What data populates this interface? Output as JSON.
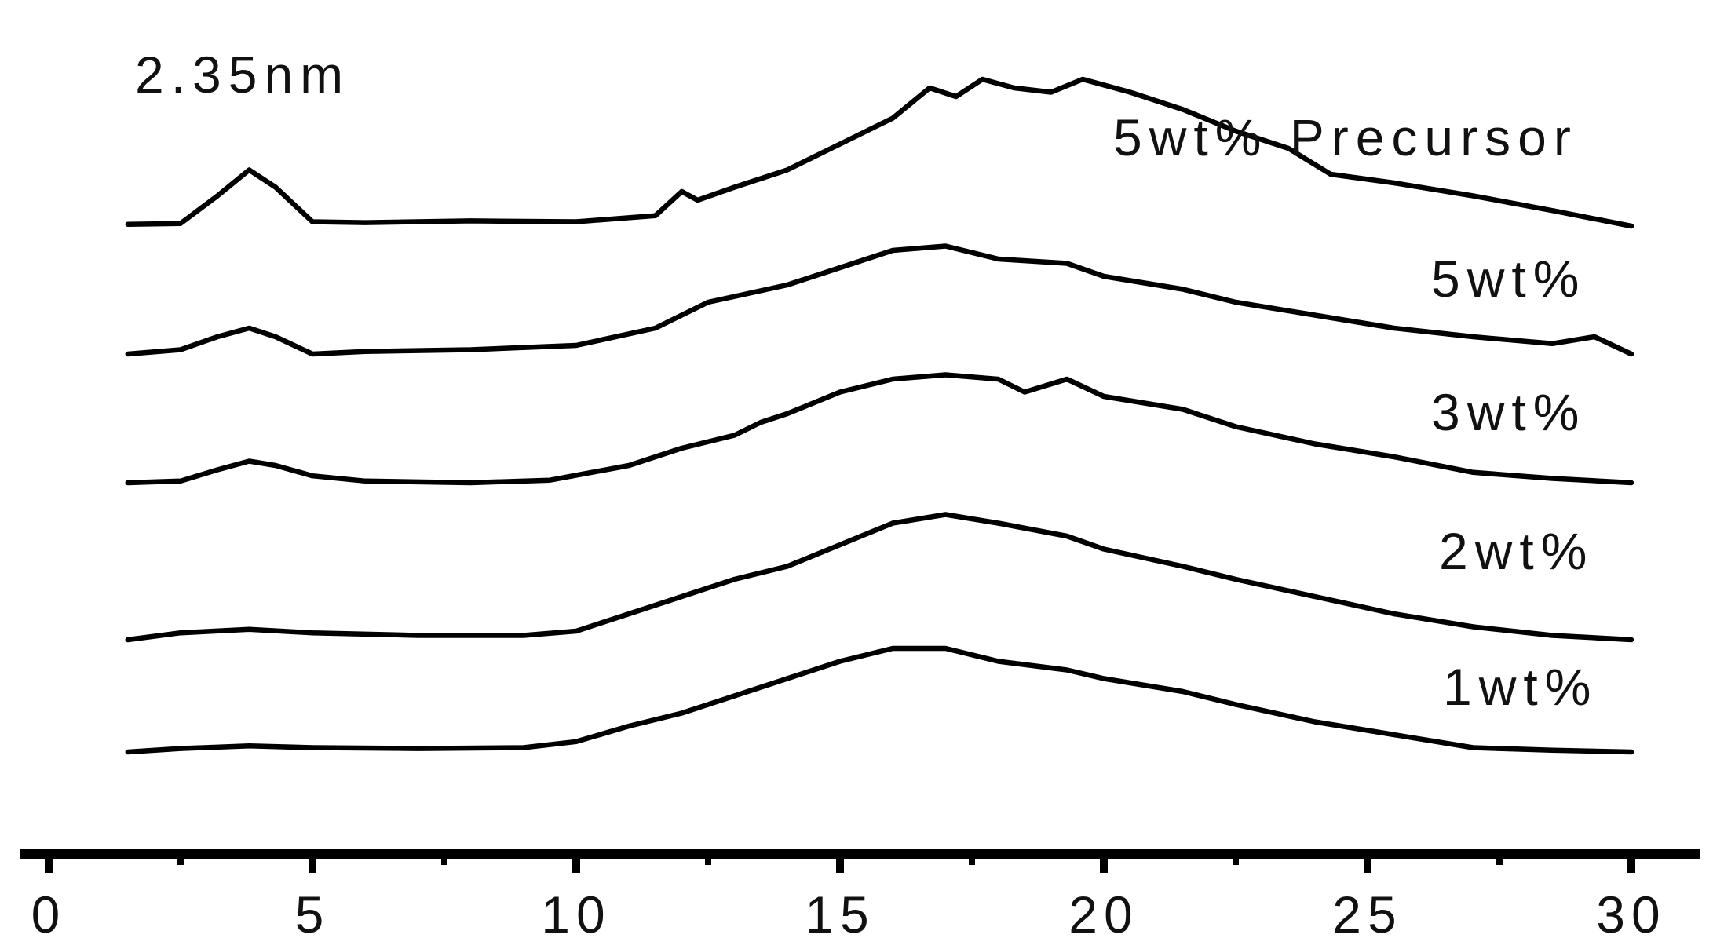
{
  "chart_data": {
    "type": "line",
    "title": "",
    "xlabel": "",
    "ylabel": "",
    "xlim": [
      -1,
      31.5
    ],
    "x_ticks": [
      0,
      5,
      10,
      15,
      20,
      25,
      30
    ],
    "x_minor_ticks": [
      2.5,
      7.5,
      12.5,
      17.5,
      22.5,
      27.5
    ],
    "grid": false,
    "legend": "none",
    "peak_annotation": {
      "text": "2.35nm",
      "x": 3.7,
      "series": "5wt% Precursor"
    },
    "series": [
      {
        "name": "5wt% Precursor",
        "label": "5wt% Precursor",
        "points": [
          [
            1.5,
            0.02
          ],
          [
            2.5,
            0.03
          ],
          [
            3.2,
            0.35
          ],
          [
            3.8,
            0.65
          ],
          [
            4.3,
            0.45
          ],
          [
            5.0,
            0.05
          ],
          [
            6,
            0.04
          ],
          [
            8,
            0.06
          ],
          [
            10,
            0.05
          ],
          [
            11.5,
            0.12
          ],
          [
            12,
            0.4
          ],
          [
            12.3,
            0.3
          ],
          [
            13,
            0.45
          ],
          [
            14,
            0.65
          ],
          [
            15,
            0.95
          ],
          [
            16,
            1.25
          ],
          [
            16.7,
            1.6
          ],
          [
            17.2,
            1.5
          ],
          [
            17.7,
            1.7
          ],
          [
            18.3,
            1.6
          ],
          [
            19,
            1.55
          ],
          [
            19.6,
            1.7
          ],
          [
            20.5,
            1.55
          ],
          [
            21.5,
            1.35
          ],
          [
            22.5,
            1.1
          ],
          [
            23.5,
            0.9
          ],
          [
            24.3,
            0.6
          ],
          [
            25.5,
            0.5
          ],
          [
            27,
            0.35
          ],
          [
            28.5,
            0.18
          ],
          [
            30,
            0.0
          ]
        ]
      },
      {
        "name": "5wt%",
        "label": "5wt%",
        "points": [
          [
            1.5,
            0.0
          ],
          [
            2.5,
            0.05
          ],
          [
            3.2,
            0.2
          ],
          [
            3.8,
            0.3
          ],
          [
            4.3,
            0.2
          ],
          [
            5,
            0.0
          ],
          [
            6,
            0.03
          ],
          [
            8,
            0.05
          ],
          [
            10,
            0.1
          ],
          [
            11.5,
            0.3
          ],
          [
            12.5,
            0.6
          ],
          [
            14,
            0.8
          ],
          [
            15,
            1.0
          ],
          [
            16,
            1.2
          ],
          [
            17,
            1.25
          ],
          [
            18,
            1.1
          ],
          [
            19.3,
            1.05
          ],
          [
            20,
            0.9
          ],
          [
            21.5,
            0.75
          ],
          [
            22.5,
            0.6
          ],
          [
            24,
            0.45
          ],
          [
            25.5,
            0.3
          ],
          [
            27,
            0.2
          ],
          [
            28.5,
            0.12
          ],
          [
            29.3,
            0.2
          ],
          [
            30,
            0.0
          ]
        ]
      },
      {
        "name": "3wt%",
        "label": "3wt%",
        "points": [
          [
            1.5,
            0.0
          ],
          [
            2.5,
            0.02
          ],
          [
            3.2,
            0.15
          ],
          [
            3.8,
            0.25
          ],
          [
            4.3,
            0.2
          ],
          [
            5,
            0.08
          ],
          [
            6,
            0.02
          ],
          [
            8,
            0.0
          ],
          [
            9.5,
            0.03
          ],
          [
            11,
            0.2
          ],
          [
            12,
            0.4
          ],
          [
            13,
            0.55
          ],
          [
            13.5,
            0.7
          ],
          [
            14,
            0.8
          ],
          [
            15,
            1.05
          ],
          [
            16,
            1.2
          ],
          [
            17,
            1.25
          ],
          [
            18,
            1.2
          ],
          [
            18.5,
            1.05
          ],
          [
            19.3,
            1.2
          ],
          [
            20,
            1.0
          ],
          [
            21.5,
            0.85
          ],
          [
            22.5,
            0.65
          ],
          [
            24,
            0.45
          ],
          [
            25.5,
            0.3
          ],
          [
            27,
            0.12
          ],
          [
            28.5,
            0.05
          ],
          [
            30,
            0.0
          ]
        ]
      },
      {
        "name": "2wt%",
        "label": "2wt%",
        "points": [
          [
            1.5,
            0.0
          ],
          [
            2.5,
            0.08
          ],
          [
            3.8,
            0.12
          ],
          [
            5,
            0.08
          ],
          [
            7,
            0.05
          ],
          [
            9,
            0.05
          ],
          [
            10,
            0.1
          ],
          [
            11,
            0.3
          ],
          [
            12,
            0.5
          ],
          [
            13,
            0.7
          ],
          [
            14,
            0.85
          ],
          [
            15,
            1.1
          ],
          [
            16,
            1.35
          ],
          [
            17,
            1.45
          ],
          [
            18,
            1.35
          ],
          [
            19.3,
            1.2
          ],
          [
            20,
            1.05
          ],
          [
            21.5,
            0.85
          ],
          [
            22.5,
            0.7
          ],
          [
            24,
            0.5
          ],
          [
            25.5,
            0.3
          ],
          [
            27,
            0.15
          ],
          [
            28.5,
            0.05
          ],
          [
            30,
            0.0
          ]
        ]
      },
      {
        "name": "1wt%",
        "label": "1wt%",
        "points": [
          [
            1.5,
            0.0
          ],
          [
            2.5,
            0.04
          ],
          [
            3.8,
            0.07
          ],
          [
            5,
            0.05
          ],
          [
            7,
            0.04
          ],
          [
            9,
            0.05
          ],
          [
            10,
            0.12
          ],
          [
            11,
            0.3
          ],
          [
            12,
            0.45
          ],
          [
            13,
            0.65
          ],
          [
            14,
            0.85
          ],
          [
            15,
            1.05
          ],
          [
            16,
            1.2
          ],
          [
            17,
            1.2
          ],
          [
            18,
            1.05
          ],
          [
            19.3,
            0.95
          ],
          [
            20,
            0.85
          ],
          [
            21.5,
            0.7
          ],
          [
            22.5,
            0.55
          ],
          [
            24,
            0.35
          ],
          [
            25.5,
            0.2
          ],
          [
            27,
            0.05
          ],
          [
            28.5,
            0.02
          ],
          [
            30,
            0.0
          ]
        ]
      }
    ]
  }
}
